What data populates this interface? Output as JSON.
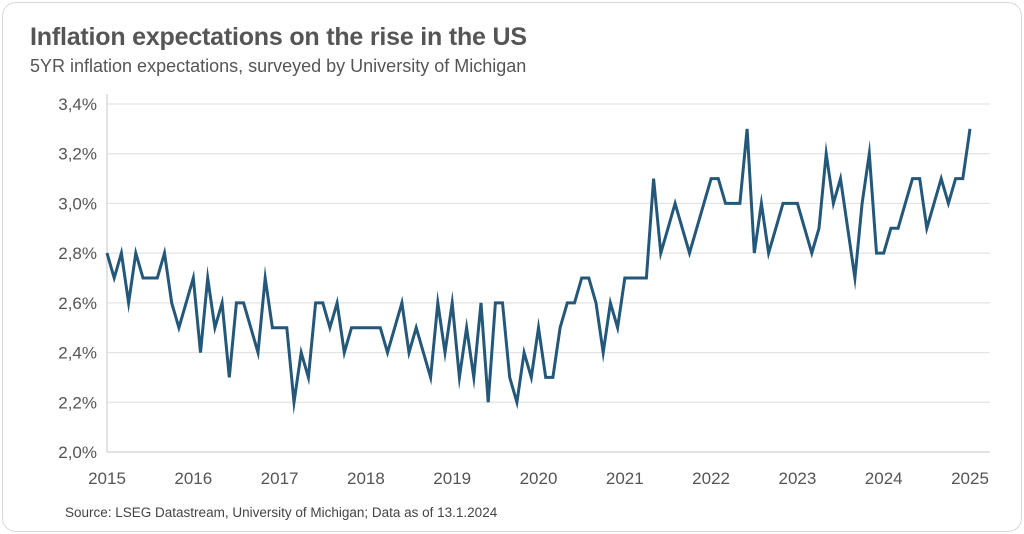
{
  "title": "Inflation expectations on the rise in the US",
  "subtitle": "5YR inflation expectations, surveyed by University of Michigan",
  "source": "Source: LSEG Datastream, University of Michigan; Data as of 13.1.2024",
  "chart_data": {
    "type": "line",
    "title": "Inflation expectations on the rise in the US",
    "subtitle": "5YR inflation expectations, surveyed by University of Michigan",
    "xlabel": "",
    "ylabel": "",
    "x_start": "2015-01",
    "x_frequency": "monthly",
    "xlim": [
      2015,
      2025
    ],
    "ylim": [
      2.0,
      3.4
    ],
    "x_ticks": [
      "2015",
      "2016",
      "2017",
      "2018",
      "2019",
      "2020",
      "2021",
      "2022",
      "2023",
      "2024",
      "2025"
    ],
    "y_ticks": [
      "2,0%",
      "2,2%",
      "2,4%",
      "2,6%",
      "2,8%",
      "3,0%",
      "3,2%",
      "3,4%"
    ],
    "y_tick_values": [
      2.0,
      2.2,
      2.4,
      2.6,
      2.8,
      3.0,
      3.2,
      3.4
    ],
    "grid": "horizontal",
    "line_color": "#24587a",
    "series": [
      {
        "values": [
          2.8,
          2.7,
          2.8,
          2.6,
          2.8,
          2.7,
          2.7,
          2.7,
          2.8,
          2.6,
          2.5,
          2.6,
          2.7,
          2.4,
          2.7,
          2.5,
          2.6,
          2.3,
          2.6,
          2.6,
          2.5,
          2.4,
          2.7,
          2.5,
          2.5,
          2.5,
          2.2,
          2.4,
          2.3,
          2.6,
          2.6,
          2.5,
          2.6,
          2.4,
          2.5,
          2.5,
          2.5,
          2.5,
          2.5,
          2.4,
          2.5,
          2.6,
          2.4,
          2.5,
          2.4,
          2.3,
          2.6,
          2.4,
          2.6,
          2.3,
          2.5,
          2.3,
          2.6,
          2.2,
          2.6,
          2.6,
          2.3,
          2.2,
          2.4,
          2.3,
          2.5,
          2.3,
          2.3,
          2.5,
          2.6,
          2.6,
          2.7,
          2.7,
          2.6,
          2.4,
          2.6,
          2.5,
          2.7,
          2.7,
          2.7,
          2.7,
          3.1,
          2.8,
          2.9,
          3.0,
          2.9,
          2.8,
          2.9,
          3.0,
          3.1,
          3.1,
          3.0,
          3.0,
          3.0,
          3.3,
          2.8,
          3.0,
          2.8,
          2.9,
          3.0,
          3.0,
          3.0,
          2.9,
          2.8,
          2.9,
          3.2,
          3.0,
          3.1,
          2.9,
          2.7,
          3.0,
          3.2,
          2.8,
          2.8,
          2.9,
          2.9,
          3.0,
          3.1,
          3.1,
          2.9,
          3.0,
          3.1,
          3.0,
          3.1,
          3.1,
          3.3
        ]
      }
    ]
  }
}
